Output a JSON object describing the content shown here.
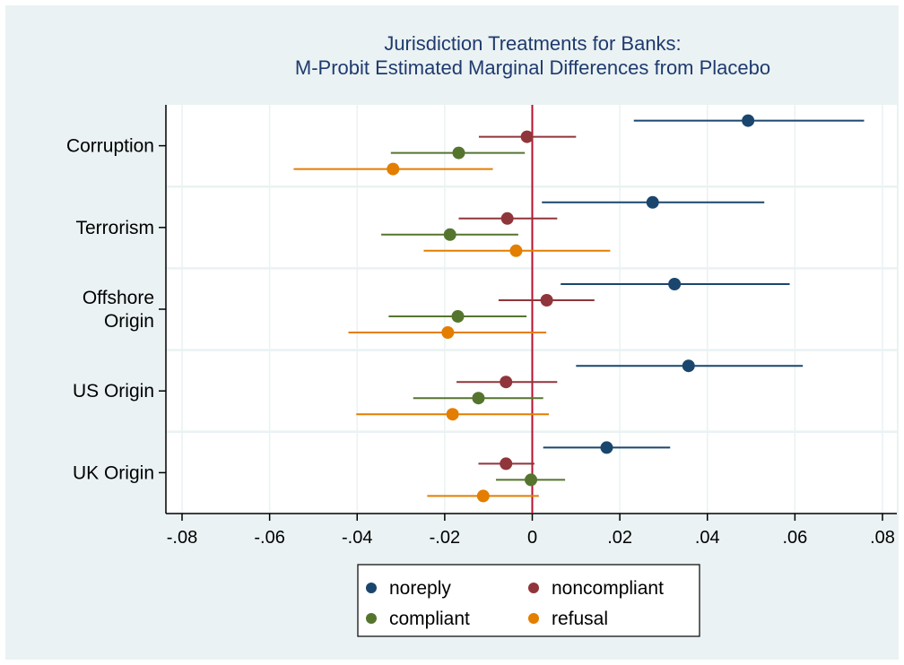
{
  "chart_data": {
    "type": "scatter",
    "subtype": "coefficient-plot-with-confidence-intervals",
    "title": "Jurisdiction Treatments for Banks:",
    "subtitle": "M-Probit Estimated Marginal Differences from Placebo",
    "xlabel": "",
    "ylabel": "",
    "xlim": [
      -0.08,
      0.08
    ],
    "x_ticks": [
      -0.08,
      -0.06,
      -0.04,
      -0.02,
      0,
      0.02,
      0.04,
      0.06,
      0.08
    ],
    "x_tick_labels": [
      "-.08",
      "-.06",
      "-.04",
      "-.02",
      "0",
      ".02",
      ".04",
      ".06",
      ".08"
    ],
    "reference_line_x": 0,
    "reference_line_color": "#b5122e",
    "grid": true,
    "categories": [
      {
        "id": "corruption",
        "label_lines": [
          "Corruption"
        ]
      },
      {
        "id": "terrorism",
        "label_lines": [
          "Terrorism"
        ]
      },
      {
        "id": "offshore",
        "label_lines": [
          "Offshore",
          "Origin"
        ]
      },
      {
        "id": "us",
        "label_lines": [
          "US Origin"
        ]
      },
      {
        "id": "uk",
        "label_lines": [
          "UK Origin"
        ]
      }
    ],
    "series": [
      {
        "name": "noreply",
        "color": "#1a466e",
        "points": [
          {
            "est": 0.0493,
            "lo": 0.0232,
            "hi": 0.0758
          },
          {
            "est": 0.0275,
            "lo": 0.0022,
            "hi": 0.053
          },
          {
            "est": 0.0325,
            "lo": 0.0065,
            "hi": 0.0588
          },
          {
            "est": 0.0357,
            "lo": 0.01,
            "hi": 0.0618
          },
          {
            "est": 0.017,
            "lo": 0.0025,
            "hi": 0.0315
          }
        ]
      },
      {
        "name": "noncompliant",
        "color": "#90353b",
        "points": [
          {
            "est": -0.0012,
            "lo": -0.0122,
            "hi": 0.01
          },
          {
            "est": -0.0057,
            "lo": -0.0168,
            "hi": 0.0057
          },
          {
            "est": 0.0033,
            "lo": -0.0077,
            "hi": 0.0142
          },
          {
            "est": -0.006,
            "lo": -0.0173,
            "hi": 0.0057
          },
          {
            "est": -0.006,
            "lo": -0.0123,
            "hi": 0.0005
          }
        ]
      },
      {
        "name": "compliant",
        "color": "#55752f",
        "points": [
          {
            "est": -0.0168,
            "lo": -0.0323,
            "hi": -0.0017
          },
          {
            "est": -0.0188,
            "lo": -0.0345,
            "hi": -0.0032
          },
          {
            "est": -0.017,
            "lo": -0.0328,
            "hi": -0.0013
          },
          {
            "est": -0.0123,
            "lo": -0.0272,
            "hi": 0.0025
          },
          {
            "est": -0.0003,
            "lo": -0.0083,
            "hi": 0.0075
          }
        ]
      },
      {
        "name": "refusal",
        "color": "#e37e00",
        "points": [
          {
            "est": -0.0318,
            "lo": -0.0545,
            "hi": -0.009
          },
          {
            "est": -0.0037,
            "lo": -0.0248,
            "hi": 0.0178
          },
          {
            "est": -0.0193,
            "lo": -0.042,
            "hi": 0.0032
          },
          {
            "est": -0.0182,
            "lo": -0.0402,
            "hi": 0.0038
          },
          {
            "est": -0.0112,
            "lo": -0.024,
            "hi": 0.0015
          }
        ]
      }
    ],
    "legend": {
      "position": "bottom",
      "columns": 2
    }
  }
}
